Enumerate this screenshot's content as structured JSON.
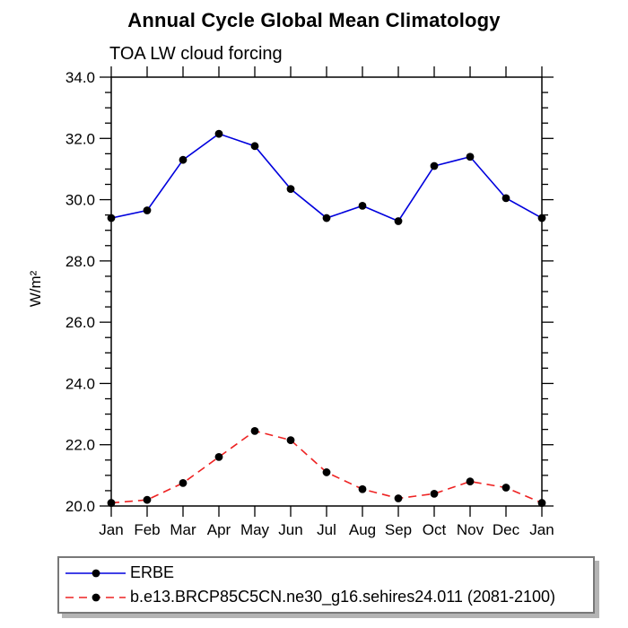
{
  "chart_data": {
    "type": "line",
    "title": "Annual Cycle Global Mean Climatology",
    "subtitle": "TOA LW cloud forcing",
    "ylabel": "W/m²",
    "xlabel": "",
    "categories": [
      "Jan",
      "Feb",
      "Mar",
      "Apr",
      "May",
      "Jun",
      "Jul",
      "Aug",
      "Sep",
      "Oct",
      "Nov",
      "Dec",
      "Jan"
    ],
    "series": [
      {
        "name": "ERBE",
        "color": "#0000dd",
        "line_style": "solid",
        "marker": "filled-black-circle",
        "values": [
          29.4,
          29.65,
          31.3,
          32.15,
          31.75,
          30.35,
          29.4,
          29.8,
          29.3,
          31.1,
          31.4,
          30.05,
          29.4
        ]
      },
      {
        "name": "b.e13.BRCP85C5CN.ne30_g16.sehires24.011 (2081-2100)",
        "color": "#ee2222",
        "line_style": "dashed",
        "marker": "filled-black-circle",
        "values": [
          20.1,
          20.2,
          20.75,
          21.6,
          22.45,
          22.15,
          21.1,
          20.55,
          20.25,
          20.4,
          20.8,
          20.6,
          20.1
        ]
      }
    ],
    "ylim": [
      20.0,
      34.0
    ],
    "ytick_major": [
      20,
      22,
      24,
      26,
      28,
      30,
      32,
      34
    ],
    "ytick_labels": [
      "20.0",
      "22.0",
      "24.0",
      "26.0",
      "28.0",
      "30.0",
      "32.0",
      "34.0"
    ],
    "ytick_minor_step": 0.5,
    "grid": false,
    "axis_color": "#000000",
    "marker_color": "#000000",
    "legend_position": "bottom-left-box"
  }
}
